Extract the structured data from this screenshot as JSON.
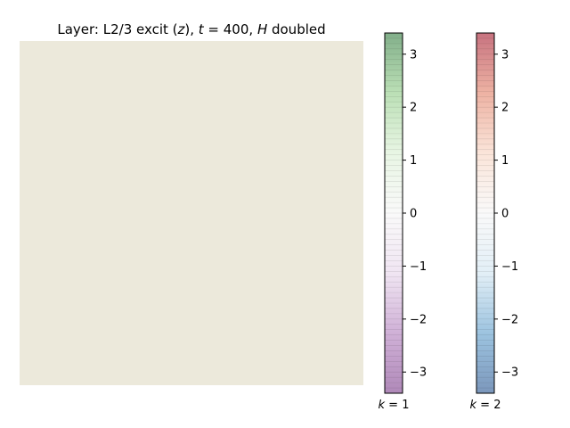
{
  "chart_data": {
    "type": "heatmap",
    "title": {
      "prefix": "Layer: L2/3 excit (",
      "var_z": "z",
      "mid1": "), ",
      "var_t": "t",
      "eq": " = 400, ",
      "var_h": "H",
      "suffix": " doubled"
    },
    "grid": false,
    "map": {
      "fill_color": "#ece9db",
      "description_values": "uniform field, no visible structure"
    },
    "colorbars": [
      {
        "name_var": "k",
        "name_eq": " = 1",
        "range": [
          -3.4,
          3.4
        ],
        "ticks": [
          -3,
          -2,
          -1,
          0,
          1,
          2,
          3
        ],
        "tick_labels": [
          "−3",
          "−2",
          "−1",
          "0",
          "1",
          "2",
          "3"
        ],
        "colors": [
          "#7b3a8a",
          "#b07cbc",
          "#e6d4ea",
          "#f6f6f6",
          "#d9efd2",
          "#8ecb85",
          "#2f7a3c"
        ],
        "alpha": 0.6
      },
      {
        "name_var": "k",
        "name_eq": " = 2",
        "range": [
          -3.4,
          3.4
        ],
        "ticks": [
          -3,
          -2,
          -1,
          0,
          1,
          2,
          3
        ],
        "tick_labels": [
          "−3",
          "−2",
          "−1",
          "0",
          "1",
          "2",
          "3"
        ],
        "colors": [
          "#24528f",
          "#5b9ccb",
          "#cfe4f1",
          "#f6f6f6",
          "#f8d3c0",
          "#e27f66",
          "#a3162b"
        ],
        "alpha": 0.6
      }
    ]
  }
}
